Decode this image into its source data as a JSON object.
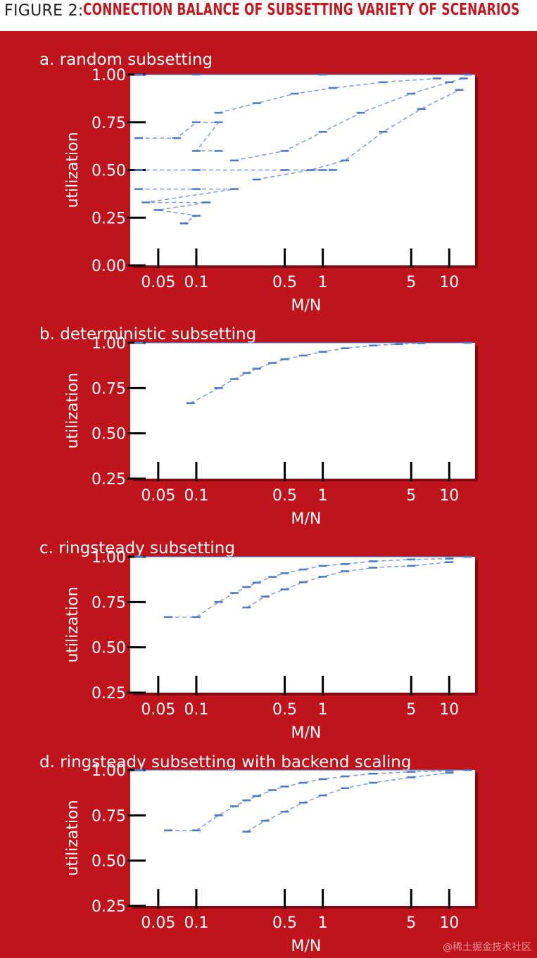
{
  "figure": {
    "label": "FIGURE 2:",
    "title": "CONNECTION BALANCE OF SUBSETTING VARIETY OF SCENARIOS"
  },
  "colors": {
    "background": "#c0141c",
    "data": "#4f7bc4",
    "plot_bg": "#ffffff",
    "axis_text": "#ffffff"
  },
  "watermark": "@稀土掘金技术社区",
  "chart_data": [
    {
      "type": "scatter",
      "title": "a. random subsetting",
      "xlabel": "M/N",
      "ylabel": "utilization",
      "xscale": "log",
      "xlim": [
        0.03,
        16
      ],
      "ylim": [
        0.0,
        1.0
      ],
      "xticks": [
        0.05,
        0.1,
        0.5,
        1,
        5,
        10
      ],
      "xtick_labels": [
        "0.05",
        "0.1",
        "0.5",
        "1",
        "5",
        "10"
      ],
      "yticks": [
        0.0,
        0.25,
        0.5,
        0.75,
        1.0
      ],
      "ytick_labels": [
        "0.00",
        "0.25",
        "0.50",
        "0.75",
        "1.00"
      ],
      "series": [
        {
          "points": [
            [
              0.035,
              1.0
            ],
            [
              0.1,
              1.0
            ],
            [
              1,
              1.0
            ],
            [
              14,
              1.0
            ]
          ]
        },
        {
          "points": [
            [
              0.035,
              0.5
            ],
            [
              0.1,
              0.5
            ],
            [
              0.5,
              0.5
            ],
            [
              1,
              0.5
            ],
            [
              1.2,
              0.5
            ]
          ]
        },
        {
          "points": [
            [
              0.035,
              0.667
            ],
            [
              0.07,
              0.667
            ],
            [
              0.1,
              0.75
            ],
            [
              0.15,
              0.75
            ],
            [
              0.1,
              0.6
            ],
            [
              0.15,
              0.6
            ]
          ]
        },
        {
          "points": [
            [
              0.035,
              0.4
            ],
            [
              0.1,
              0.4
            ],
            [
              0.2,
              0.4
            ],
            [
              0.04,
              0.33
            ],
            [
              0.12,
              0.33
            ],
            [
              0.05,
              0.29
            ],
            [
              0.1,
              0.26
            ],
            [
              0.08,
              0.22
            ]
          ]
        },
        {
          "points": [
            [
              0.2,
              0.55
            ],
            [
              0.5,
              0.6
            ],
            [
              1,
              0.7
            ],
            [
              2,
              0.8
            ],
            [
              5,
              0.9
            ],
            [
              10,
              0.96
            ],
            [
              13,
              0.98
            ]
          ]
        },
        {
          "points": [
            [
              0.15,
              0.8
            ],
            [
              0.3,
              0.85
            ],
            [
              0.6,
              0.9
            ],
            [
              1.2,
              0.93
            ],
            [
              3,
              0.96
            ],
            [
              8,
              0.98
            ]
          ]
        },
        {
          "points": [
            [
              0.3,
              0.45
            ],
            [
              0.8,
              0.5
            ],
            [
              1.5,
              0.55
            ],
            [
              3,
              0.7
            ],
            [
              6,
              0.82
            ],
            [
              12,
              0.92
            ]
          ]
        }
      ]
    },
    {
      "type": "scatter",
      "title": "b. deterministic subsetting",
      "xlabel": "M/N",
      "ylabel": "utilization",
      "xscale": "log",
      "xlim": [
        0.03,
        16
      ],
      "ylim": [
        0.25,
        1.0
      ],
      "xticks": [
        0.05,
        0.1,
        0.5,
        1,
        5,
        10
      ],
      "xtick_labels": [
        "0.05",
        "0.1",
        "0.5",
        "1",
        "5",
        "10"
      ],
      "yticks": [
        0.25,
        0.5,
        0.75,
        1.0
      ],
      "ytick_labels": [
        "0.25",
        "0.50",
        "0.75",
        "1.00"
      ],
      "series": [
        {
          "points": [
            [
              0.035,
              1.0
            ],
            [
              14,
              1.0
            ]
          ]
        },
        {
          "points": [
            [
              0.09,
              0.667
            ],
            [
              0.15,
              0.75
            ],
            [
              0.2,
              0.8
            ],
            [
              0.25,
              0.833
            ],
            [
              0.3,
              0.857
            ],
            [
              0.4,
              0.889
            ],
            [
              0.5,
              0.909
            ],
            [
              0.7,
              0.93
            ],
            [
              1,
              0.95
            ],
            [
              1.5,
              0.97
            ],
            [
              2.5,
              0.985
            ],
            [
              4,
              0.993
            ],
            [
              6,
              0.998
            ]
          ]
        }
      ]
    },
    {
      "type": "scatter",
      "title": "c. ringsteady subsetting",
      "xlabel": "M/N",
      "ylabel": "utilization",
      "xscale": "log",
      "xlim": [
        0.03,
        16
      ],
      "ylim": [
        0.25,
        1.0
      ],
      "xticks": [
        0.05,
        0.1,
        0.5,
        1,
        5,
        10
      ],
      "xtick_labels": [
        "0.05",
        "0.1",
        "0.5",
        "1",
        "5",
        "10"
      ],
      "yticks": [
        0.25,
        0.5,
        0.75,
        1.0
      ],
      "ytick_labels": [
        "0.25",
        "0.50",
        "0.75",
        "1.00"
      ],
      "series": [
        {
          "points": [
            [
              0.035,
              1.0
            ],
            [
              14,
              1.0
            ]
          ]
        },
        {
          "points": [
            [
              0.06,
              0.667
            ],
            [
              0.1,
              0.667
            ],
            [
              0.15,
              0.75
            ],
            [
              0.2,
              0.8
            ],
            [
              0.25,
              0.833
            ],
            [
              0.3,
              0.857
            ],
            [
              0.4,
              0.889
            ],
            [
              0.5,
              0.909
            ],
            [
              0.7,
              0.93
            ],
            [
              1,
              0.95
            ],
            [
              1.5,
              0.96
            ],
            [
              2.5,
              0.975
            ],
            [
              5,
              0.985
            ],
            [
              10,
              0.99
            ]
          ]
        },
        {
          "points": [
            [
              0.25,
              0.72
            ],
            [
              0.35,
              0.78
            ],
            [
              0.5,
              0.82
            ],
            [
              0.7,
              0.86
            ],
            [
              1,
              0.89
            ],
            [
              1.5,
              0.92
            ],
            [
              2.5,
              0.94
            ],
            [
              5,
              0.95
            ],
            [
              10,
              0.97
            ]
          ]
        }
      ]
    },
    {
      "type": "scatter",
      "title": "d. ringsteady subsetting with backend scaling",
      "xlabel": "M/N",
      "ylabel": "utilization",
      "xscale": "log",
      "xlim": [
        0.03,
        16
      ],
      "ylim": [
        0.25,
        1.0
      ],
      "xticks": [
        0.05,
        0.1,
        0.5,
        1,
        5,
        10
      ],
      "xtick_labels": [
        "0.05",
        "0.1",
        "0.5",
        "1",
        "5",
        "10"
      ],
      "yticks": [
        0.25,
        0.5,
        0.75,
        1.0
      ],
      "ytick_labels": [
        "0.25",
        "0.50",
        "0.75",
        "1.00"
      ],
      "series": [
        {
          "points": [
            [
              0.035,
              1.0
            ],
            [
              14,
              1.0
            ]
          ]
        },
        {
          "points": [
            [
              0.06,
              0.667
            ],
            [
              0.1,
              0.667
            ],
            [
              0.15,
              0.75
            ],
            [
              0.2,
              0.8
            ],
            [
              0.25,
              0.833
            ],
            [
              0.3,
              0.857
            ],
            [
              0.4,
              0.889
            ],
            [
              0.5,
              0.909
            ],
            [
              0.7,
              0.93
            ],
            [
              1,
              0.95
            ],
            [
              1.5,
              0.965
            ],
            [
              2.5,
              0.98
            ],
            [
              5,
              0.99
            ],
            [
              10,
              0.997
            ]
          ]
        },
        {
          "points": [
            [
              0.25,
              0.66
            ],
            [
              0.35,
              0.72
            ],
            [
              0.5,
              0.77
            ],
            [
              0.7,
              0.82
            ],
            [
              1,
              0.86
            ],
            [
              1.5,
              0.9
            ],
            [
              2.5,
              0.93
            ],
            [
              5,
              0.96
            ],
            [
              10,
              0.985
            ]
          ]
        }
      ]
    }
  ]
}
